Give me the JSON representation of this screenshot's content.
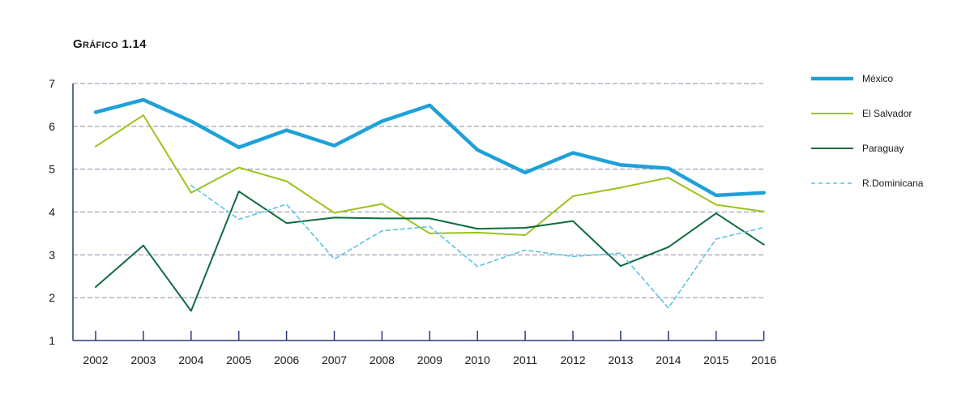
{
  "chart_data": {
    "type": "line",
    "title": "Gráfico 1.14",
    "x": [
      "2002",
      "2003",
      "2004",
      "2005",
      "2006",
      "2007",
      "2008",
      "2009",
      "2010",
      "2011",
      "2012",
      "2013",
      "2014",
      "2015",
      "2016"
    ],
    "ylim": [
      1,
      7
    ],
    "yticks": [
      1,
      2,
      3,
      4,
      5,
      6,
      7
    ],
    "grid": true,
    "legend_position": "right",
    "series": [
      {
        "name": "México",
        "color": "#1ea1d9",
        "style": "solid-thick",
        "values": [
          6.33,
          6.62,
          6.12,
          5.51,
          5.91,
          5.55,
          6.12,
          6.49,
          5.45,
          4.92,
          5.38,
          5.1,
          5.02,
          4.39,
          4.45
        ]
      },
      {
        "name": "El Salvador",
        "color": "#9dc31a",
        "style": "solid",
        "values": [
          5.53,
          6.26,
          4.45,
          5.04,
          4.72,
          3.98,
          4.19,
          3.5,
          3.52,
          3.46,
          4.37,
          4.57,
          4.8,
          4.17,
          4.01
        ]
      },
      {
        "name": "Paraguay",
        "color": "#0f6b3e",
        "style": "solid",
        "values": [
          2.25,
          3.22,
          1.69,
          4.48,
          3.74,
          3.87,
          3.85,
          3.85,
          3.61,
          3.63,
          3.79,
          2.74,
          3.18,
          3.97,
          3.24
        ]
      },
      {
        "name": "R.Dominicana",
        "color": "#5cc3e3",
        "style": "dashed",
        "values": [
          null,
          null,
          4.62,
          3.83,
          4.18,
          2.9,
          3.56,
          3.66,
          2.73,
          3.11,
          2.96,
          3.04,
          1.76,
          3.37,
          3.64
        ]
      }
    ]
  }
}
